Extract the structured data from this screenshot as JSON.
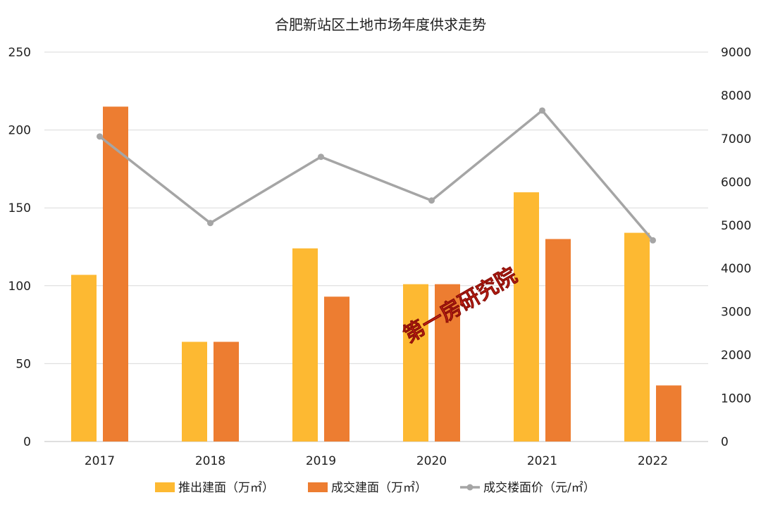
{
  "chart_data": {
    "type": "bar",
    "title": "合肥新站区土地市场年度供求走势",
    "categories": [
      "2017",
      "2018",
      "2019",
      "2020",
      "2021",
      "2022"
    ],
    "series": [
      {
        "name": "推出建面（万㎡）",
        "type": "bar",
        "axis": "left",
        "color": "#FDB932",
        "values": [
          107,
          64,
          124,
          101,
          160,
          134
        ]
      },
      {
        "name": "成交建面（万㎡）",
        "type": "bar",
        "axis": "left",
        "color": "#ED7D31",
        "values": [
          215,
          64,
          93,
          101,
          130,
          36
        ]
      },
      {
        "name": "成交楼面价（元/㎡）",
        "type": "line",
        "axis": "right",
        "color": "#A5A5A5",
        "values": [
          7050,
          5050,
          6580,
          5570,
          7650,
          4650
        ]
      }
    ],
    "ylim_left": [
      0,
      250
    ],
    "yticks_left": [
      "0",
      "50",
      "100",
      "150",
      "200",
      "250"
    ],
    "ylim_right": [
      0,
      9000
    ],
    "yticks_right": [
      "0",
      "1000",
      "2000",
      "3000",
      "4000",
      "5000",
      "6000",
      "7000",
      "8000",
      "9000"
    ],
    "grid": true,
    "legend_position": "bottom",
    "watermark": "第一房研究院"
  }
}
